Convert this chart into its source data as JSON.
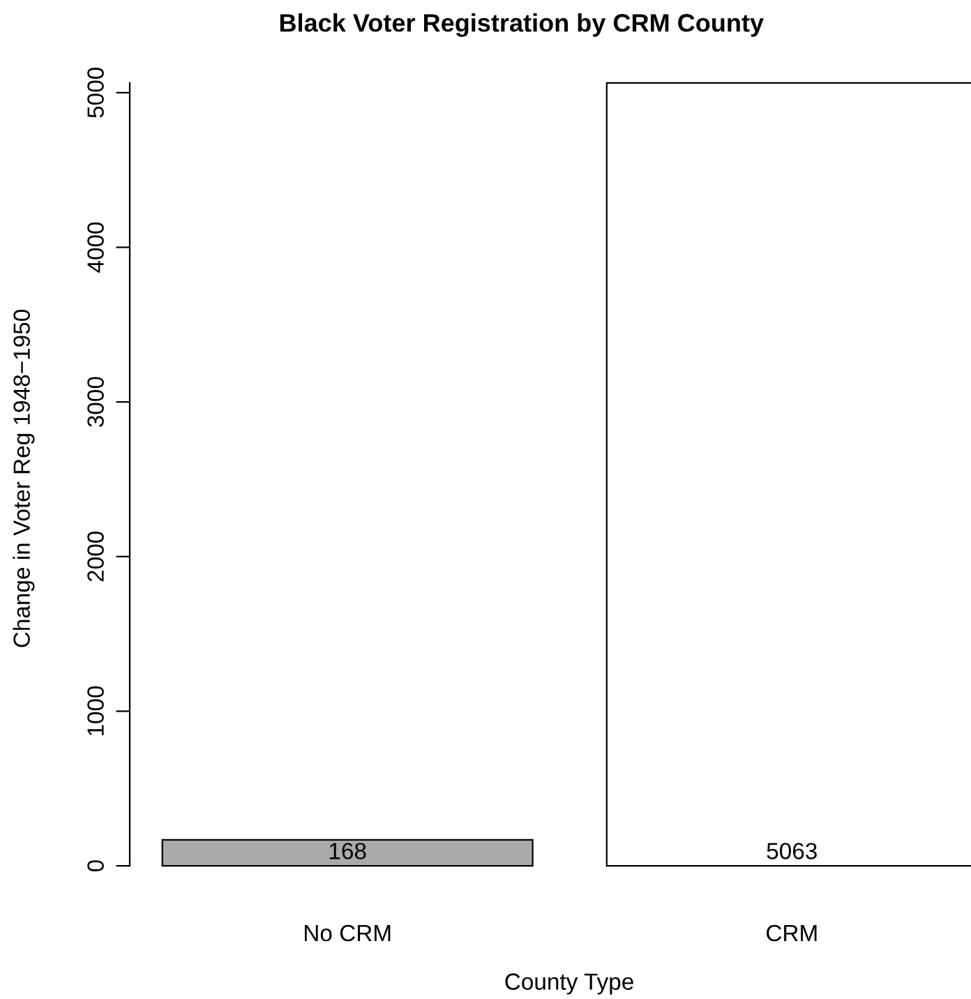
{
  "chart_data": {
    "type": "bar",
    "title": "Black Voter Registration by CRM County",
    "xlabel": "County Type",
    "ylabel": "Change in Voter Reg 1948−1950",
    "categories": [
      "No CRM",
      "CRM"
    ],
    "values": [
      168,
      5063
    ],
    "colors": [
      "#aaaaaa",
      "#ffffff"
    ],
    "ylim": [
      0,
      5063
    ],
    "yticks": [
      0,
      1000,
      2000,
      3000,
      4000,
      5000
    ],
    "grid": false,
    "data_labels": true
  }
}
